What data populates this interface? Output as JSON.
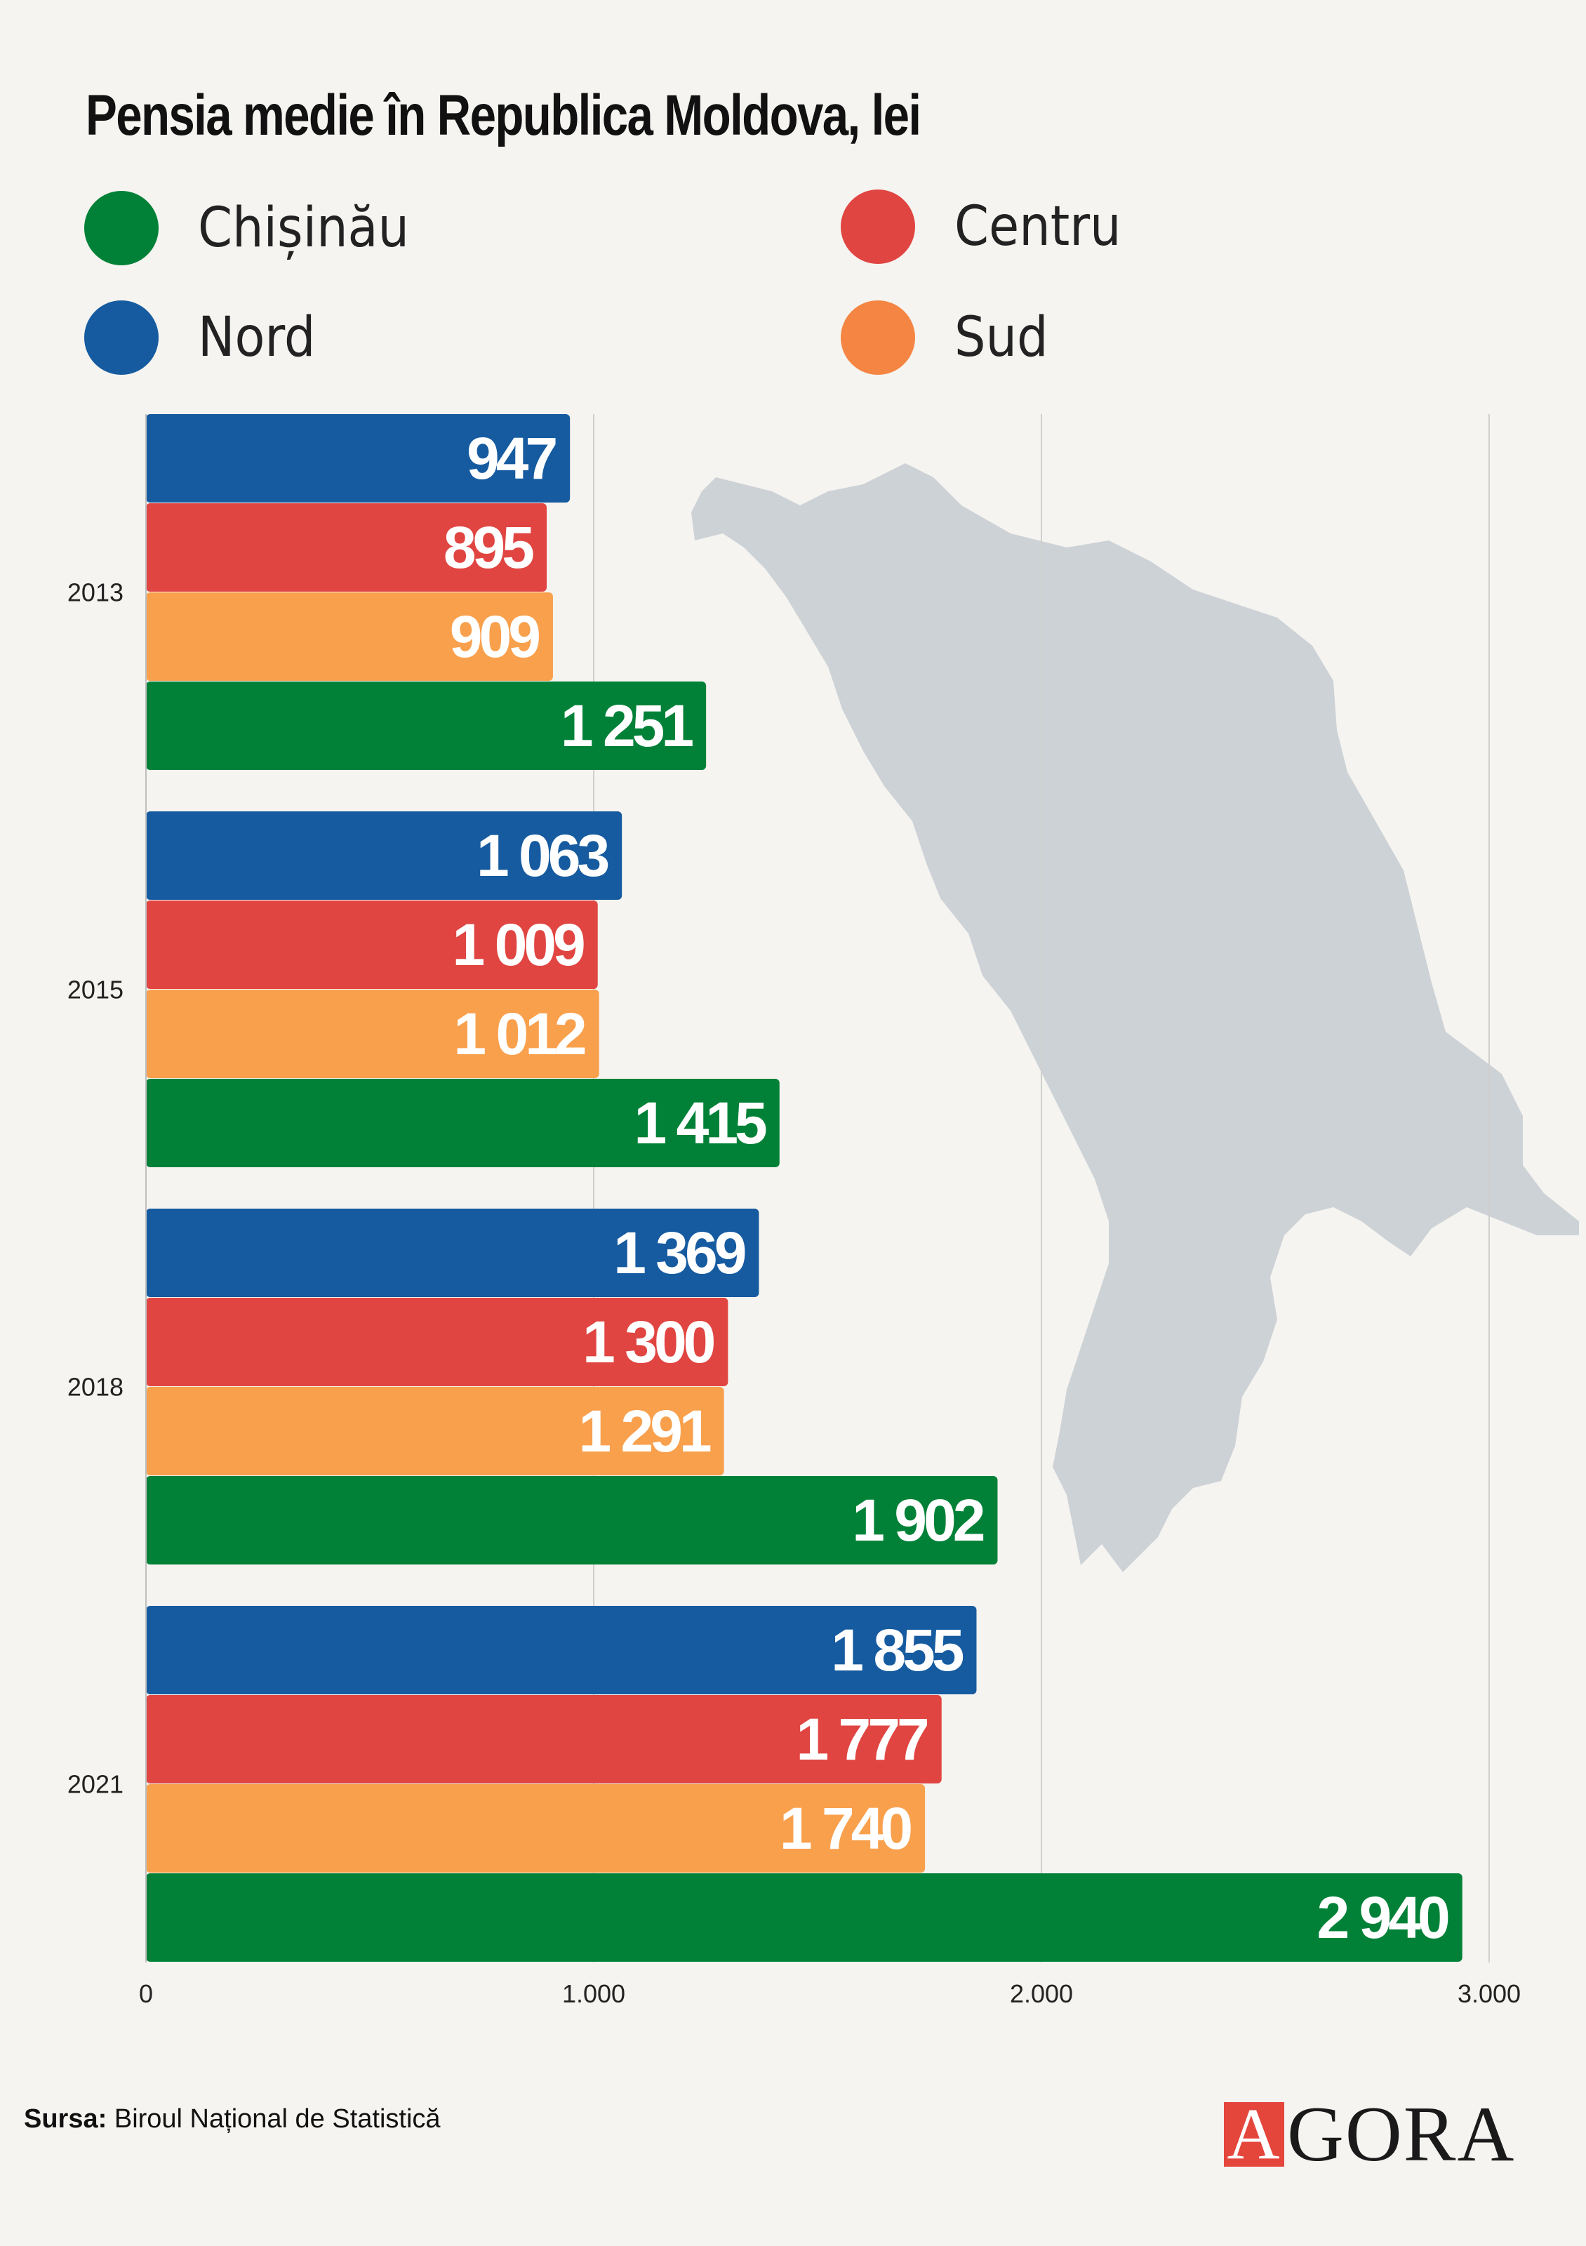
{
  "chart_data": {
    "type": "bar",
    "orientation": "horizontal",
    "title": "Pensia medie în Republica Moldova, lei",
    "categories": [
      "2013",
      "2015",
      "2018",
      "2021"
    ],
    "series": [
      {
        "name": "Nord",
        "color": "#165ba0",
        "values": [
          947,
          1063,
          1369,
          1855
        ],
        "labels": [
          "947",
          "1 063",
          "1 369",
          "1 855"
        ]
      },
      {
        "name": "Centru",
        "color": "#e04541",
        "values": [
          895,
          1009,
          1300,
          1777
        ],
        "labels": [
          "895",
          "1 009",
          "1 300",
          "1 777"
        ]
      },
      {
        "name": "Sud",
        "color": "#f9a04d",
        "values": [
          909,
          1012,
          1291,
          1740
        ],
        "labels": [
          "909",
          "1 012",
          "1 291",
          "1 740"
        ]
      },
      {
        "name": "Chișinău",
        "color": "#018137",
        "values": [
          1251,
          1415,
          1902,
          2940
        ],
        "labels": [
          "1 251",
          "1 415",
          "1 902",
          "2 940"
        ]
      }
    ],
    "xlim": [
      0,
      3000
    ],
    "xticks": [
      0,
      1000,
      2000,
      3000
    ],
    "xtick_labels": [
      "0",
      "1.000",
      "2.000",
      "3.000"
    ],
    "grid": true,
    "legend_position": "top"
  },
  "legend": [
    {
      "label": "Chișinău",
      "color": "#018137",
      "marker": "circle"
    },
    {
      "label": "Centru",
      "color": "#e04541",
      "marker": "circle"
    },
    {
      "label": "Nord",
      "color": "#165ba0",
      "marker": "circle"
    },
    {
      "label": "Sud",
      "color": "#f58542",
      "marker": "circle"
    }
  ],
  "source": {
    "prefix": "Sursa:",
    "text": "Biroul Național de Statistică"
  },
  "logo": {
    "mark": "A",
    "text": "GORA",
    "accent_color": "#e4463c"
  },
  "background_map": {
    "icon": "moldova-map-silhouette",
    "color": "#cdd2d6"
  }
}
